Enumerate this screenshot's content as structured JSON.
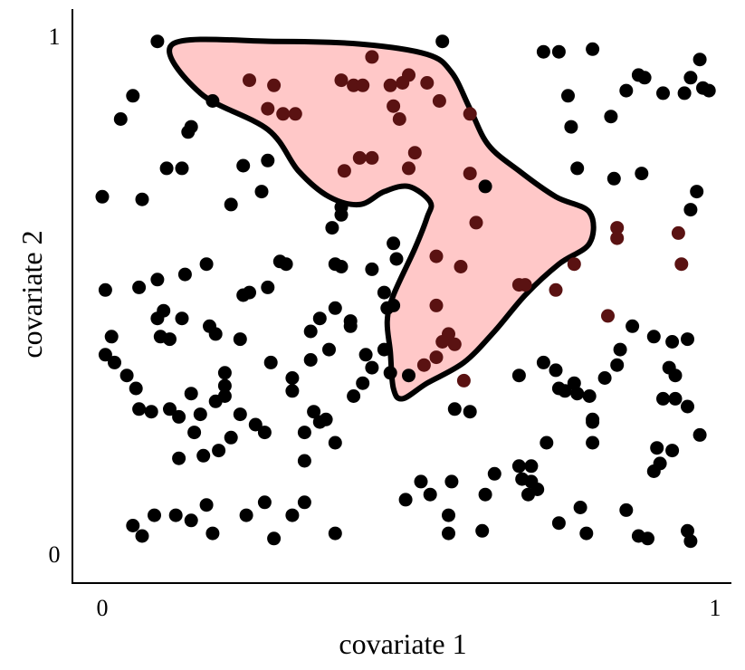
{
  "chart_data": {
    "type": "scatter",
    "xlabel": "covariate 1",
    "ylabel": "covariate 2",
    "xlim": [
      0,
      1
    ],
    "ylim": [
      0,
      1
    ],
    "x_ticks": [
      {
        "value": 0,
        "label": "0"
      },
      {
        "value": 1,
        "label": "1"
      }
    ],
    "y_ticks": [
      {
        "value": 0,
        "label": "0"
      },
      {
        "value": 1,
        "label": "1"
      }
    ],
    "grid": false,
    "legend": "none",
    "colors": {
      "point": "#000000",
      "region_fill": "#ffc8c8",
      "region_stroke": "#000000",
      "point_inside_region": "#5a1212"
    },
    "region": {
      "outline": [
        [
          0.115,
          0.985
        ],
        [
          0.28,
          0.99
        ],
        [
          0.42,
          0.985
        ],
        [
          0.53,
          0.965
        ],
        [
          0.57,
          0.93
        ],
        [
          0.6,
          0.86
        ],
        [
          0.63,
          0.79
        ],
        [
          0.68,
          0.74
        ],
        [
          0.74,
          0.69
        ],
        [
          0.795,
          0.66
        ],
        [
          0.795,
          0.6
        ],
        [
          0.745,
          0.56
        ],
        [
          0.69,
          0.5
        ],
        [
          0.64,
          0.43
        ],
        [
          0.59,
          0.37
        ],
        [
          0.53,
          0.33
        ],
        [
          0.49,
          0.3
        ],
        [
          0.475,
          0.32
        ],
        [
          0.47,
          0.39
        ],
        [
          0.465,
          0.45
        ],
        [
          0.475,
          0.5
        ],
        [
          0.51,
          0.59
        ],
        [
          0.53,
          0.65
        ],
        [
          0.535,
          0.68
        ],
        [
          0.5,
          0.71
        ],
        [
          0.46,
          0.7
        ],
        [
          0.42,
          0.675
        ],
        [
          0.37,
          0.69
        ],
        [
          0.32,
          0.74
        ],
        [
          0.27,
          0.82
        ],
        [
          0.16,
          0.89
        ]
      ]
    },
    "points_inside": [
      [
        0.24,
        0.915
      ],
      [
        0.28,
        0.905
      ],
      [
        0.27,
        0.86
      ],
      [
        0.295,
        0.85
      ],
      [
        0.315,
        0.85
      ],
      [
        0.39,
        0.915
      ],
      [
        0.41,
        0.905
      ],
      [
        0.425,
        0.905
      ],
      [
        0.44,
        0.96
      ],
      [
        0.47,
        0.905
      ],
      [
        0.475,
        0.865
      ],
      [
        0.49,
        0.91
      ],
      [
        0.5,
        0.925
      ],
      [
        0.485,
        0.84
      ],
      [
        0.53,
        0.91
      ],
      [
        0.55,
        0.875
      ],
      [
        0.6,
        0.85
      ],
      [
        0.6,
        0.735
      ],
      [
        0.42,
        0.765
      ],
      [
        0.395,
        0.74
      ],
      [
        0.44,
        0.765
      ],
      [
        0.51,
        0.775
      ],
      [
        0.5,
        0.745
      ],
      [
        0.61,
        0.64
      ],
      [
        0.585,
        0.555
      ],
      [
        0.545,
        0.575
      ],
      [
        0.68,
        0.52
      ],
      [
        0.69,
        0.52
      ],
      [
        0.74,
        0.51
      ],
      [
        0.77,
        0.56
      ],
      [
        0.84,
        0.61
      ],
      [
        0.84,
        0.63
      ],
      [
        0.94,
        0.62
      ],
      [
        0.945,
        0.56
      ],
      [
        0.825,
        0.46
      ],
      [
        0.575,
        0.405
      ],
      [
        0.565,
        0.425
      ],
      [
        0.555,
        0.41
      ],
      [
        0.545,
        0.38
      ],
      [
        0.525,
        0.365
      ],
      [
        0.59,
        0.335
      ],
      [
        0.545,
        0.48
      ]
    ],
    "points": [
      [
        0.09,
        0.99
      ],
      [
        0.555,
        0.99
      ],
      [
        0.72,
        0.97
      ],
      [
        0.745,
        0.97
      ],
      [
        0.8,
        0.975
      ],
      [
        0.975,
        0.955
      ],
      [
        0.875,
        0.925
      ],
      [
        0.885,
        0.92
      ],
      [
        0.96,
        0.92
      ],
      [
        0.855,
        0.895
      ],
      [
        0.915,
        0.89
      ],
      [
        0.95,
        0.89
      ],
      [
        0.98,
        0.9
      ],
      [
        0.99,
        0.895
      ],
      [
        0.76,
        0.885
      ],
      [
        0.83,
        0.845
      ],
      [
        0.765,
        0.825
      ],
      [
        0.05,
        0.885
      ],
      [
        0.03,
        0.84
      ],
      [
        0.18,
        0.875
      ],
      [
        0.145,
        0.825
      ],
      [
        0.14,
        0.815
      ],
      [
        0.27,
        0.76
      ],
      [
        0.23,
        0.75
      ],
      [
        0.105,
        0.745
      ],
      [
        0.13,
        0.745
      ],
      [
        0.0,
        0.69
      ],
      [
        0.065,
        0.685
      ],
      [
        0.21,
        0.675
      ],
      [
        0.26,
        0.7
      ],
      [
        0.39,
        0.67
      ],
      [
        0.39,
        0.655
      ],
      [
        0.625,
        0.71
      ],
      [
        0.775,
        0.745
      ],
      [
        0.835,
        0.725
      ],
      [
        0.88,
        0.735
      ],
      [
        0.97,
        0.7
      ],
      [
        0.96,
        0.665
      ],
      [
        0.375,
        0.63
      ],
      [
        0.475,
        0.6
      ],
      [
        0.29,
        0.565
      ],
      [
        0.3,
        0.56
      ],
      [
        0.38,
        0.56
      ],
      [
        0.39,
        0.555
      ],
      [
        0.48,
        0.57
      ],
      [
        0.17,
        0.56
      ],
      [
        0.135,
        0.54
      ],
      [
        0.09,
        0.53
      ],
      [
        0.005,
        0.51
      ],
      [
        0.06,
        0.515
      ],
      [
        0.23,
        0.5
      ],
      [
        0.24,
        0.505
      ],
      [
        0.27,
        0.515
      ],
      [
        0.44,
        0.55
      ],
      [
        0.46,
        0.505
      ],
      [
        0.475,
        0.48
      ],
      [
        0.465,
        0.475
      ],
      [
        0.38,
        0.475
      ],
      [
        0.34,
        0.43
      ],
      [
        0.405,
        0.45
      ],
      [
        0.405,
        0.44
      ],
      [
        0.355,
        0.455
      ],
      [
        0.1,
        0.47
      ],
      [
        0.13,
        0.455
      ],
      [
        0.175,
        0.44
      ],
      [
        0.225,
        0.415
      ],
      [
        0.185,
        0.425
      ],
      [
        0.09,
        0.455
      ],
      [
        0.095,
        0.42
      ],
      [
        0.11,
        0.415
      ],
      [
        0.015,
        0.42
      ],
      [
        0.005,
        0.385
      ],
      [
        0.02,
        0.37
      ],
      [
        0.04,
        0.345
      ],
      [
        0.055,
        0.32
      ],
      [
        0.06,
        0.28
      ],
      [
        0.2,
        0.35
      ],
      [
        0.2,
        0.325
      ],
      [
        0.275,
        0.37
      ],
      [
        0.31,
        0.34
      ],
      [
        0.31,
        0.315
      ],
      [
        0.34,
        0.375
      ],
      [
        0.37,
        0.395
      ],
      [
        0.43,
        0.385
      ],
      [
        0.44,
        0.36
      ],
      [
        0.47,
        0.35
      ],
      [
        0.5,
        0.345
      ],
      [
        0.46,
        0.395
      ],
      [
        0.345,
        0.275
      ],
      [
        0.365,
        0.26
      ],
      [
        0.2,
        0.305
      ],
      [
        0.185,
        0.295
      ],
      [
        0.145,
        0.31
      ],
      [
        0.125,
        0.265
      ],
      [
        0.15,
        0.235
      ],
      [
        0.225,
        0.27
      ],
      [
        0.25,
        0.25
      ],
      [
        0.265,
        0.235
      ],
      [
        0.33,
        0.235
      ],
      [
        0.355,
        0.255
      ],
      [
        0.41,
        0.305
      ],
      [
        0.425,
        0.33
      ],
      [
        0.575,
        0.28
      ],
      [
        0.6,
        0.275
      ],
      [
        0.68,
        0.345
      ],
      [
        0.72,
        0.37
      ],
      [
        0.74,
        0.355
      ],
      [
        0.77,
        0.33
      ],
      [
        0.745,
        0.32
      ],
      [
        0.755,
        0.315
      ],
      [
        0.775,
        0.31
      ],
      [
        0.795,
        0.305
      ],
      [
        0.82,
        0.34
      ],
      [
        0.84,
        0.365
      ],
      [
        0.845,
        0.395
      ],
      [
        0.865,
        0.44
      ],
      [
        0.9,
        0.42
      ],
      [
        0.93,
        0.41
      ],
      [
        0.955,
        0.415
      ],
      [
        0.925,
        0.36
      ],
      [
        0.935,
        0.345
      ],
      [
        0.915,
        0.3
      ],
      [
        0.935,
        0.3
      ],
      [
        0.955,
        0.285
      ],
      [
        0.975,
        0.23
      ],
      [
        0.8,
        0.26
      ],
      [
        0.8,
        0.255
      ],
      [
        0.8,
        0.215
      ],
      [
        0.905,
        0.205
      ],
      [
        0.725,
        0.215
      ],
      [
        0.7,
        0.17
      ],
      [
        0.64,
        0.155
      ],
      [
        0.57,
        0.14
      ],
      [
        0.685,
        0.145
      ],
      [
        0.7,
        0.14
      ],
      [
        0.71,
        0.125
      ],
      [
        0.695,
        0.115
      ],
      [
        0.625,
        0.115
      ],
      [
        0.62,
        0.045
      ],
      [
        0.52,
        0.14
      ],
      [
        0.535,
        0.115
      ],
      [
        0.565,
        0.075
      ],
      [
        0.495,
        0.105
      ],
      [
        0.33,
        0.1
      ],
      [
        0.265,
        0.1
      ],
      [
        0.235,
        0.075
      ],
      [
        0.17,
        0.095
      ],
      [
        0.125,
        0.185
      ],
      [
        0.165,
        0.19
      ],
      [
        0.19,
        0.2
      ],
      [
        0.21,
        0.225
      ],
      [
        0.12,
        0.075
      ],
      [
        0.145,
        0.065
      ],
      [
        0.18,
        0.04
      ],
      [
        0.085,
        0.075
      ],
      [
        0.05,
        0.055
      ],
      [
        0.065,
        0.035
      ],
      [
        0.28,
        0.03
      ],
      [
        0.31,
        0.075
      ],
      [
        0.38,
        0.04
      ],
      [
        0.33,
        0.18
      ],
      [
        0.38,
        0.215
      ],
      [
        0.565,
        0.04
      ],
      [
        0.68,
        0.17
      ],
      [
        0.745,
        0.06
      ],
      [
        0.79,
        0.04
      ],
      [
        0.875,
        0.035
      ],
      [
        0.89,
        0.03
      ],
      [
        0.955,
        0.045
      ],
      [
        0.96,
        0.025
      ],
      [
        0.78,
        0.09
      ],
      [
        0.855,
        0.085
      ],
      [
        0.9,
        0.16
      ],
      [
        0.91,
        0.175
      ],
      [
        0.93,
        0.2
      ],
      [
        0.08,
        0.275
      ],
      [
        0.11,
        0.28
      ],
      [
        0.16,
        0.27
      ]
    ]
  }
}
